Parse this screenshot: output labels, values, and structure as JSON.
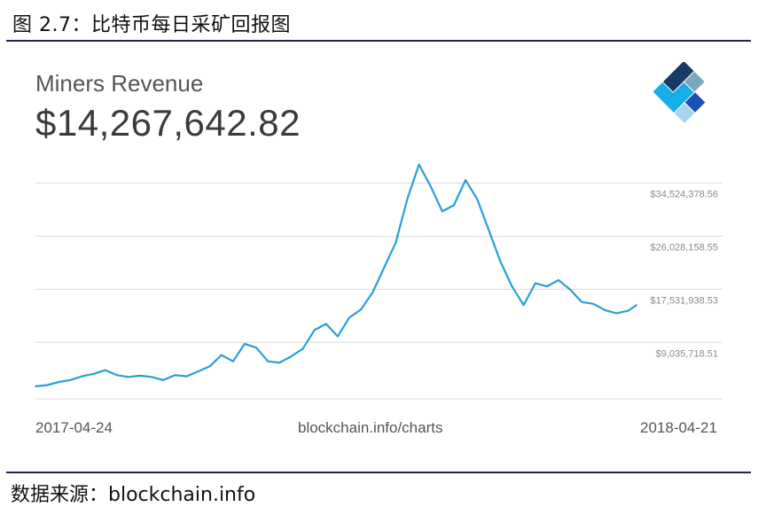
{
  "figure": {
    "title": "图 2.7：比特币每日采矿回报图",
    "source": "数据来源：blockchain.info"
  },
  "card": {
    "label": "Miners Revenue",
    "value": "$14,267,642.82",
    "credit": "blockchain.info/charts",
    "logo_icon": "blockchain-logo-icon"
  },
  "chart_data": {
    "type": "line",
    "title": "Miners Revenue",
    "x_start": "2017-04-24",
    "x_end": "2018-04-21",
    "ylim": [
      0,
      39000000
    ],
    "y_ticks": [
      9035718.51,
      17531938.53,
      26028158.55,
      34524378.56
    ],
    "y_tick_labels": [
      "$9,035,718.51",
      "$17,531,938.53",
      "$26,028,158.55",
      "$34,524,378.56"
    ],
    "grid": true,
    "line_color": "#2a9fd6",
    "series": [
      {
        "x": [
          "2017-04-24",
          "2017-05-01",
          "2017-05-08",
          "2017-05-15",
          "2017-05-22",
          "2017-05-29",
          "2017-06-05",
          "2017-06-12",
          "2017-06-19",
          "2017-06-26",
          "2017-07-03",
          "2017-07-10",
          "2017-07-17",
          "2017-07-24",
          "2017-07-31",
          "2017-08-07",
          "2017-08-14",
          "2017-08-21",
          "2017-08-28",
          "2017-09-04",
          "2017-09-11",
          "2017-09-18",
          "2017-09-25",
          "2017-10-02",
          "2017-10-09",
          "2017-10-16",
          "2017-10-23",
          "2017-10-30",
          "2017-11-06",
          "2017-11-13",
          "2017-11-20",
          "2017-11-27",
          "2017-12-04",
          "2017-12-11",
          "2017-12-18",
          "2017-12-25",
          "2018-01-01",
          "2018-01-08",
          "2018-01-15",
          "2018-01-22",
          "2018-01-29",
          "2018-02-05",
          "2018-02-12",
          "2018-02-19",
          "2018-02-26",
          "2018-03-05",
          "2018-03-12",
          "2018-03-19",
          "2018-03-26",
          "2018-04-02",
          "2018-04-09",
          "2018-04-16",
          "2018-04-21"
        ],
        "y": [
          2000000,
          2200000,
          2700000,
          3000000,
          3600000,
          4000000,
          4600000,
          3800000,
          3500000,
          3700000,
          3500000,
          3000000,
          3800000,
          3600000,
          4400000,
          5200000,
          7000000,
          6000000,
          8800000,
          8200000,
          6000000,
          5800000,
          6800000,
          8000000,
          11000000,
          12000000,
          10000000,
          13000000,
          14300000,
          17000000,
          21000000,
          25000000,
          32000000,
          37500000,
          34000000,
          30000000,
          31000000,
          35000000,
          32000000,
          27000000,
          22000000,
          18000000,
          15000000,
          18500000,
          18000000,
          19000000,
          17500000,
          15500000,
          15200000,
          14200000,
          13700000,
          14100000,
          15000000
        ]
      }
    ]
  }
}
